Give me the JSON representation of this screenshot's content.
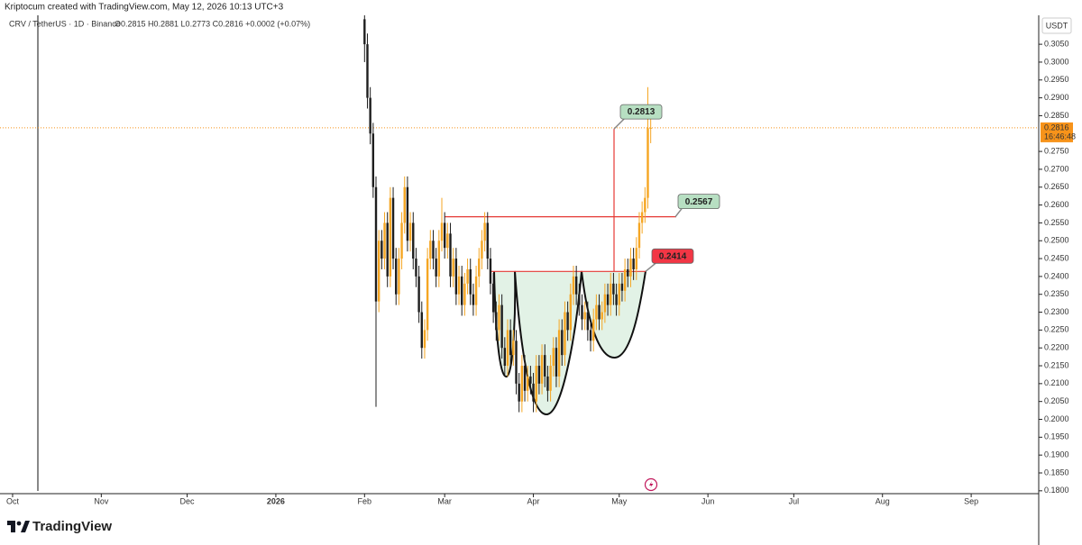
{
  "chart_data": {
    "type": "candlestick",
    "attribution": "Kriptocum created with TradingView.com, May 12, 2026 10:13 UTC+3",
    "symbol": "CRV / TetherUS · 1D · Binance",
    "ohlc_legend": "O0.2815 H0.2881 L0.2773 C0.2816 +0.0002 (+0.07%)",
    "unit": "USDT",
    "countdown": "16:46:48",
    "brand": "TradingView",
    "up_color": "#f5a623",
    "down_color": "#1e1e1e",
    "last_price_color": "#f7931a",
    "x": [
      123,
      124,
      125,
      126,
      127,
      128,
      129,
      130,
      131,
      132,
      133,
      134,
      135,
      136,
      137,
      138,
      139,
      140,
      141,
      142,
      143,
      144,
      145,
      146,
      147,
      148,
      149,
      150,
      151,
      152,
      153,
      154,
      155,
      156,
      157,
      158,
      159,
      160,
      161,
      162,
      163,
      164,
      165,
      166,
      167,
      168,
      169,
      170,
      171,
      172,
      173,
      174,
      175,
      176,
      177,
      178,
      179,
      180,
      181,
      182,
      183,
      184,
      185,
      186,
      187,
      188,
      189,
      190,
      191,
      192,
      193,
      194,
      195,
      196,
      197,
      198,
      199,
      200,
      201,
      202,
      203,
      204,
      205,
      206,
      207,
      208,
      209,
      210,
      211,
      212,
      213,
      214,
      215,
      216,
      217,
      218,
      219,
      220,
      221,
      222,
      223
    ],
    "open": [
      0.312,
      0.305,
      0.29,
      0.28,
      0.265,
      0.233,
      0.25,
      0.245,
      0.255,
      0.24,
      0.262,
      0.245,
      0.235,
      0.245,
      0.255,
      0.265,
      0.25,
      0.255,
      0.245,
      0.24,
      0.23,
      0.22,
      0.225,
      0.245,
      0.25,
      0.245,
      0.24,
      0.25,
      0.255,
      0.248,
      0.252,
      0.24,
      0.245,
      0.235,
      0.24,
      0.232,
      0.238,
      0.242,
      0.235,
      0.232,
      0.24,
      0.245,
      0.25,
      0.255,
      0.245,
      0.238,
      0.23,
      0.225,
      0.232,
      0.22,
      0.215,
      0.225,
      0.218,
      0.222,
      0.21,
      0.205,
      0.215,
      0.208,
      0.212,
      0.21,
      0.205,
      0.215,
      0.21,
      0.218,
      0.212,
      0.208,
      0.215,
      0.22,
      0.212,
      0.225,
      0.218,
      0.23,
      0.225,
      0.235,
      0.24,
      0.235,
      0.232,
      0.228,
      0.23,
      0.225,
      0.222,
      0.228,
      0.232,
      0.228,
      0.23,
      0.235,
      0.232,
      0.238,
      0.235,
      0.232,
      0.238,
      0.236,
      0.242,
      0.24,
      0.245,
      0.242,
      0.248,
      0.255,
      0.258,
      0.262,
      0.2815
    ],
    "high": [
      0.318,
      0.308,
      0.293,
      0.283,
      0.268,
      0.253,
      0.253,
      0.258,
      0.258,
      0.265,
      0.265,
      0.248,
      0.248,
      0.258,
      0.268,
      0.268,
      0.258,
      0.258,
      0.248,
      0.243,
      0.233,
      0.228,
      0.248,
      0.253,
      0.253,
      0.248,
      0.253,
      0.262,
      0.258,
      0.255,
      0.255,
      0.248,
      0.248,
      0.243,
      0.243,
      0.241,
      0.245,
      0.245,
      0.238,
      0.243,
      0.248,
      0.253,
      0.258,
      0.258,
      0.248,
      0.241,
      0.233,
      0.235,
      0.235,
      0.223,
      0.228,
      0.228,
      0.225,
      0.225,
      0.213,
      0.218,
      0.218,
      0.215,
      0.215,
      0.213,
      0.218,
      0.218,
      0.221,
      0.221,
      0.215,
      0.218,
      0.223,
      0.223,
      0.228,
      0.228,
      0.233,
      0.233,
      0.238,
      0.243,
      0.243,
      0.238,
      0.235,
      0.233,
      0.233,
      0.228,
      0.231,
      0.235,
      0.235,
      0.233,
      0.238,
      0.238,
      0.241,
      0.241,
      0.238,
      0.241,
      0.241,
      0.245,
      0.245,
      0.248,
      0.248,
      0.251,
      0.258,
      0.261,
      0.265,
      0.293,
      0.2881
    ],
    "low": [
      0.3,
      0.287,
      0.277,
      0.262,
      0.2035,
      0.23,
      0.242,
      0.242,
      0.237,
      0.237,
      0.242,
      0.232,
      0.232,
      0.242,
      0.252,
      0.247,
      0.247,
      0.242,
      0.237,
      0.227,
      0.217,
      0.217,
      0.222,
      0.242,
      0.242,
      0.237,
      0.237,
      0.247,
      0.245,
      0.245,
      0.237,
      0.237,
      0.232,
      0.232,
      0.229,
      0.229,
      0.235,
      0.232,
      0.229,
      0.229,
      0.237,
      0.242,
      0.247,
      0.242,
      0.235,
      0.227,
      0.222,
      0.222,
      0.217,
      0.212,
      0.212,
      0.215,
      0.215,
      0.207,
      0.202,
      0.202,
      0.205,
      0.205,
      0.207,
      0.202,
      0.202,
      0.207,
      0.207,
      0.209,
      0.205,
      0.205,
      0.212,
      0.209,
      0.209,
      0.215,
      0.215,
      0.222,
      0.222,
      0.232,
      0.232,
      0.229,
      0.225,
      0.225,
      0.222,
      0.219,
      0.219,
      0.225,
      0.225,
      0.225,
      0.227,
      0.229,
      0.229,
      0.232,
      0.229,
      0.229,
      0.233,
      0.233,
      0.237,
      0.237,
      0.239,
      0.239,
      0.245,
      0.252,
      0.255,
      0.259,
      0.2773
    ],
    "close": [
      0.305,
      0.29,
      0.28,
      0.265,
      0.233,
      0.25,
      0.245,
      0.255,
      0.24,
      0.262,
      0.245,
      0.235,
      0.245,
      0.255,
      0.265,
      0.25,
      0.255,
      0.245,
      0.24,
      0.23,
      0.22,
      0.225,
      0.245,
      0.25,
      0.245,
      0.24,
      0.25,
      0.255,
      0.248,
      0.252,
      0.24,
      0.245,
      0.235,
      0.24,
      0.232,
      0.238,
      0.242,
      0.235,
      0.232,
      0.24,
      0.245,
      0.25,
      0.255,
      0.245,
      0.238,
      0.23,
      0.225,
      0.232,
      0.22,
      0.215,
      0.225,
      0.218,
      0.222,
      0.21,
      0.205,
      0.215,
      0.208,
      0.212,
      0.21,
      0.205,
      0.215,
      0.21,
      0.218,
      0.212,
      0.208,
      0.215,
      0.22,
      0.212,
      0.225,
      0.218,
      0.23,
      0.225,
      0.235,
      0.24,
      0.235,
      0.232,
      0.228,
      0.23,
      0.225,
      0.222,
      0.228,
      0.232,
      0.228,
      0.23,
      0.235,
      0.232,
      0.238,
      0.235,
      0.232,
      0.238,
      0.236,
      0.242,
      0.24,
      0.245,
      0.242,
      0.248,
      0.255,
      0.258,
      0.262,
      0.2815,
      0.2816
    ],
    "xlim": [
      -4.4,
      358.6
    ],
    "xticks": [
      {
        "value": 0,
        "label": "Oct"
      },
      {
        "value": 31,
        "label": "Nov"
      },
      {
        "value": 61,
        "label": "Dec"
      },
      {
        "value": 92,
        "label": "2026"
      },
      {
        "value": 123,
        "label": "Feb"
      },
      {
        "value": 151,
        "label": "Mar"
      },
      {
        "value": 182,
        "label": "Apr"
      },
      {
        "value": 212,
        "label": "May"
      },
      {
        "value": 243,
        "label": "Jun"
      },
      {
        "value": 273,
        "label": "Jul"
      },
      {
        "value": 304,
        "label": "Aug"
      },
      {
        "value": 335,
        "label": "Sep"
      }
    ],
    "ylim": [
      0.1792,
      0.3131
    ],
    "yticks": [
      {
        "value": 0.305,
        "label": "0.3050"
      },
      {
        "value": 0.3,
        "label": "0.3000"
      },
      {
        "value": 0.295,
        "label": "0.2950"
      },
      {
        "value": 0.29,
        "label": "0.2900"
      },
      {
        "value": 0.285,
        "label": "0.2850"
      },
      {
        "value": 0.275,
        "label": "0.2750"
      },
      {
        "value": 0.27,
        "label": "0.2700"
      },
      {
        "value": 0.265,
        "label": "0.2650"
      },
      {
        "value": 0.26,
        "label": "0.2600"
      },
      {
        "value": 0.255,
        "label": "0.2550"
      },
      {
        "value": 0.25,
        "label": "0.2500"
      },
      {
        "value": 0.245,
        "label": "0.2450"
      },
      {
        "value": 0.24,
        "label": "0.2400"
      },
      {
        "value": 0.235,
        "label": "0.2350"
      },
      {
        "value": 0.23,
        "label": "0.2300"
      },
      {
        "value": 0.225,
        "label": "0.2250"
      },
      {
        "value": 0.22,
        "label": "0.2200"
      },
      {
        "value": 0.215,
        "label": "0.2150"
      },
      {
        "value": 0.21,
        "label": "0.2100"
      },
      {
        "value": 0.205,
        "label": "0.2050"
      },
      {
        "value": 0.2,
        "label": "0.2000"
      },
      {
        "value": 0.195,
        "label": "0.1950"
      },
      {
        "value": 0.19,
        "label": "0.1900"
      },
      {
        "value": 0.185,
        "label": "0.1850"
      },
      {
        "value": 0.18,
        "label": "0.1800"
      }
    ],
    "price_labels": [
      {
        "value": 0.2813,
        "color": "#b7dfc2"
      },
      {
        "value": 0.2567,
        "color": "#b7dfc2"
      },
      {
        "value": 0.2414,
        "color": "#f23645"
      }
    ],
    "grid": false
  }
}
